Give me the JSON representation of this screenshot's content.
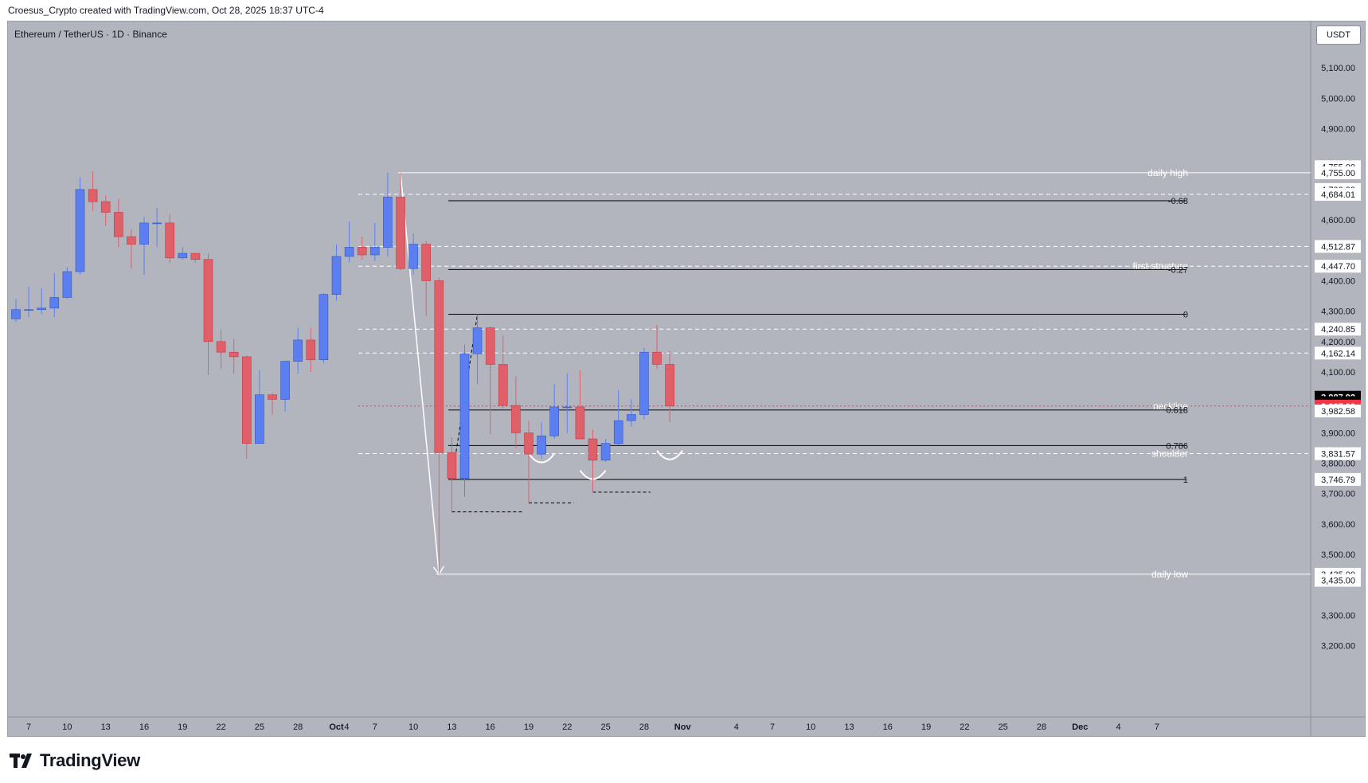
{
  "header": {
    "credit": "Croesus_Crypto created with TradingView.com, Oct 28, 2025 18:37 UTC-4"
  },
  "symbol_line": "Ethereum / TetherUS · 1D · Binance",
  "currency_button": "USDT",
  "brand": "TradingView",
  "colors": {
    "up": "#5b7ff0",
    "down": "#e0606a",
    "background": "#b2b5be",
    "white_line": "#ffffff",
    "black_line": "#000000",
    "last_price_badge": "#f23645",
    "countdown_badge": "#000000"
  },
  "chart_data": {
    "type": "candlestick",
    "title": "",
    "ylim": [
      3100,
      5200
    ],
    "y_scale": "linear",
    "grid": false,
    "y_ticks": [
      "5,100.00",
      "5,000.00",
      "4,900.00",
      "4,600.00",
      "4,400.00",
      "4,300.00",
      "4,200.00",
      "4,100.00",
      "3,900.00",
      "3,800.00",
      "3,700.00",
      "3,600.00",
      "3,500.00",
      "3,300.00",
      "3,200.00"
    ],
    "x_ticks": [
      "7",
      "10",
      "13",
      "16",
      "19",
      "22",
      "25",
      "28",
      "Oct",
      "4",
      "7",
      "10",
      "13",
      "16",
      "19",
      "22",
      "25",
      "28",
      "Nov",
      "4",
      "7",
      "10",
      "13",
      "16",
      "19",
      "22",
      "25",
      "28",
      "Dec",
      "4",
      "7"
    ],
    "candles": [
      {
        "date": "2025-09-06",
        "o": 4275,
        "h": 4340,
        "l": 4265,
        "c": 4305
      },
      {
        "date": "2025-09-07",
        "o": 4305,
        "h": 4380,
        "l": 4280,
        "c": 4305
      },
      {
        "date": "2025-09-08",
        "o": 4305,
        "h": 4375,
        "l": 4290,
        "c": 4310
      },
      {
        "date": "2025-09-09",
        "o": 4310,
        "h": 4425,
        "l": 4280,
        "c": 4345
      },
      {
        "date": "2025-09-10",
        "o": 4345,
        "h": 4445,
        "l": 4340,
        "c": 4430
      },
      {
        "date": "2025-09-11",
        "o": 4430,
        "h": 4740,
        "l": 4420,
        "c": 4700
      },
      {
        "date": "2025-09-12",
        "o": 4700,
        "h": 4760,
        "l": 4630,
        "c": 4660
      },
      {
        "date": "2025-09-13",
        "o": 4660,
        "h": 4680,
        "l": 4580,
        "c": 4625
      },
      {
        "date": "2025-09-14",
        "o": 4625,
        "h": 4670,
        "l": 4510,
        "c": 4545
      },
      {
        "date": "2025-09-15",
        "o": 4545,
        "h": 4570,
        "l": 4440,
        "c": 4520
      },
      {
        "date": "2025-09-16",
        "o": 4520,
        "h": 4610,
        "l": 4420,
        "c": 4590
      },
      {
        "date": "2025-09-17",
        "o": 4590,
        "h": 4640,
        "l": 4510,
        "c": 4590
      },
      {
        "date": "2025-09-18",
        "o": 4590,
        "h": 4620,
        "l": 4460,
        "c": 4475
      },
      {
        "date": "2025-09-19",
        "o": 4475,
        "h": 4510,
        "l": 4470,
        "c": 4490
      },
      {
        "date": "2025-09-20",
        "o": 4490,
        "h": 4490,
        "l": 4460,
        "c": 4470
      },
      {
        "date": "2025-09-21",
        "o": 4470,
        "h": 4490,
        "l": 4090,
        "c": 4200
      },
      {
        "date": "2025-09-22",
        "o": 4200,
        "h": 4240,
        "l": 4110,
        "c": 4165
      },
      {
        "date": "2025-09-23",
        "o": 4165,
        "h": 4210,
        "l": 4095,
        "c": 4150
      },
      {
        "date": "2025-09-24",
        "o": 4150,
        "h": 4155,
        "l": 3815,
        "c": 3865
      },
      {
        "date": "2025-09-25",
        "o": 3865,
        "h": 4105,
        "l": 3865,
        "c": 4025
      },
      {
        "date": "2025-09-26",
        "o": 4025,
        "h": 4030,
        "l": 3960,
        "c": 4010
      },
      {
        "date": "2025-09-27",
        "o": 4010,
        "h": 4120,
        "l": 3970,
        "c": 4135
      },
      {
        "date": "2025-09-28",
        "o": 4135,
        "h": 4245,
        "l": 4095,
        "c": 4205
      },
      {
        "date": "2025-09-29",
        "o": 4205,
        "h": 4245,
        "l": 4100,
        "c": 4140
      },
      {
        "date": "2025-09-30",
        "o": 4140,
        "h": 4360,
        "l": 4130,
        "c": 4355
      },
      {
        "date": "2025-10-01",
        "o": 4355,
        "h": 4520,
        "l": 4335,
        "c": 4480
      },
      {
        "date": "2025-10-02",
        "o": 4480,
        "h": 4595,
        "l": 4460,
        "c": 4510
      },
      {
        "date": "2025-10-03",
        "o": 4510,
        "h": 4545,
        "l": 4470,
        "c": 4485
      },
      {
        "date": "2025-10-04",
        "o": 4485,
        "h": 4590,
        "l": 4465,
        "c": 4510
      },
      {
        "date": "2025-10-05",
        "o": 4510,
        "h": 4755,
        "l": 4480,
        "c": 4675
      },
      {
        "date": "2025-10-06",
        "o": 4675,
        "h": 4755,
        "l": 4435,
        "c": 4440
      },
      {
        "date": "2025-10-07",
        "o": 4440,
        "h": 4555,
        "l": 4420,
        "c": 4520
      },
      {
        "date": "2025-10-08",
        "o": 4520,
        "h": 4530,
        "l": 4285,
        "c": 4400
      },
      {
        "date": "2025-10-09",
        "o": 4400,
        "h": 4410,
        "l": 3435,
        "c": 3835
      },
      {
        "date": "2025-10-10",
        "o": 3835,
        "h": 3885,
        "l": 3640,
        "c": 3750
      },
      {
        "date": "2025-10-11",
        "o": 3750,
        "h": 4190,
        "l": 3690,
        "c": 4160
      },
      {
        "date": "2025-10-12",
        "o": 4160,
        "h": 4290,
        "l": 4060,
        "c": 4245
      },
      {
        "date": "2025-10-13",
        "o": 4245,
        "h": 4250,
        "l": 3895,
        "c": 4125
      },
      {
        "date": "2025-10-14",
        "o": 4125,
        "h": 4220,
        "l": 3980,
        "c": 3990
      },
      {
        "date": "2025-10-15",
        "o": 3990,
        "h": 4085,
        "l": 3850,
        "c": 3900
      },
      {
        "date": "2025-10-16",
        "o": 3900,
        "h": 3940,
        "l": 3670,
        "c": 3830
      },
      {
        "date": "2025-10-17",
        "o": 3830,
        "h": 3935,
        "l": 3815,
        "c": 3890
      },
      {
        "date": "2025-10-18",
        "o": 3890,
        "h": 4060,
        "l": 3880,
        "c": 3985
      },
      {
        "date": "2025-10-19",
        "o": 3985,
        "h": 4095,
        "l": 3900,
        "c": 3985
      },
      {
        "date": "2025-10-20",
        "o": 3985,
        "h": 4105,
        "l": 3880,
        "c": 3880
      },
      {
        "date": "2025-10-21",
        "o": 3880,
        "h": 3910,
        "l": 3705,
        "c": 3810
      },
      {
        "date": "2025-10-22",
        "o": 3810,
        "h": 3880,
        "l": 3805,
        "c": 3865
      },
      {
        "date": "2025-10-23",
        "o": 3865,
        "h": 4040,
        "l": 3860,
        "c": 3940
      },
      {
        "date": "2025-10-24",
        "o": 3940,
        "h": 4010,
        "l": 3920,
        "c": 3960
      },
      {
        "date": "2025-10-25",
        "o": 3960,
        "h": 4180,
        "l": 3945,
        "c": 4165
      },
      {
        "date": "2025-10-26",
        "o": 4165,
        "h": 4255,
        "l": 4110,
        "c": 4125
      },
      {
        "date": "2025-10-27",
        "o": 4125,
        "h": 4170,
        "l": 3935,
        "c": 3988
      }
    ],
    "horizontal_lines": [
      {
        "price": 4755.0,
        "style": "solid",
        "color": "#ffffff",
        "label": "daily high"
      },
      {
        "price": 4684.01,
        "style": "dashed",
        "color": "#ffffff",
        "label": ""
      },
      {
        "price": 4512.87,
        "style": "dashed",
        "color": "#ffffff",
        "label": ""
      },
      {
        "price": 4447.7,
        "style": "dashed",
        "color": "#ffffff",
        "label": "first structure"
      },
      {
        "price": 4240.85,
        "style": "dashed",
        "color": "#ffffff",
        "label": ""
      },
      {
        "price": 4162.14,
        "style": "dashed",
        "color": "#ffffff",
        "label": ""
      },
      {
        "price": 3987.92,
        "style": "dotted",
        "color": "#f23645",
        "label": "neckline"
      },
      {
        "price": 3831.57,
        "style": "dashed",
        "color": "#ffffff",
        "label": "shoulder"
      },
      {
        "price": 3435.0,
        "style": "solid",
        "color": "#ffffff",
        "label": "daily low"
      }
    ],
    "fib_levels": [
      {
        "ratio": "-0.68",
        "price": 4663
      },
      {
        "ratio": "-0.27",
        "price": 4437
      },
      {
        "ratio": "0",
        "price": 4290
      },
      {
        "ratio": "0.618",
        "price": 3975
      },
      {
        "ratio": "0.786",
        "price": 3858
      },
      {
        "ratio": "1",
        "price": 3746.79
      }
    ],
    "price_labels": [
      {
        "text": "4,755.00",
        "price": 4775,
        "type": "white"
      },
      {
        "text": "4,755.00",
        "price": 4755,
        "type": "white"
      },
      {
        "text": "4,700.00",
        "price": 4700,
        "type": "white"
      },
      {
        "text": "4,684.01",
        "price": 4684.01,
        "type": "white"
      },
      {
        "text": "4,512.87",
        "price": 4512.87,
        "type": "white"
      },
      {
        "text": "4,447.70",
        "price": 4447.7,
        "type": "white"
      },
      {
        "text": "4,240.85",
        "price": 4240.85,
        "type": "white"
      },
      {
        "text": "4,162.14",
        "price": 4162.14,
        "type": "white"
      },
      {
        "text": "3,987.92",
        "price": 4017,
        "type": "black"
      },
      {
        "text": "01:22:35",
        "price": 3999,
        "type": "black"
      },
      {
        "text": "3,987.92",
        "price": 3987.92,
        "type": "red"
      },
      {
        "text": "3,982.58",
        "price": 3972,
        "type": "white"
      },
      {
        "text": "3,831.57",
        "price": 3831.57,
        "type": "white"
      },
      {
        "text": "3,746.79",
        "price": 3746.79,
        "type": "white"
      },
      {
        "text": "3,435.00",
        "price": 3435,
        "type": "white"
      },
      {
        "text": "3,435.00",
        "price": 3415,
        "type": "white"
      }
    ],
    "annotations": {
      "low_markers": [
        {
          "date_from": "2025-10-10",
          "date_to": "2025-10-15",
          "price": 3640
        },
        {
          "date_from": "2025-10-16",
          "date_to": "2025-10-19",
          "price": 3670
        },
        {
          "date_from": "2025-10-21",
          "date_to": "2025-10-25",
          "price": 3705
        }
      ],
      "arcs": [
        {
          "date": "2025-10-17",
          "price": 3800
        },
        {
          "date": "2025-10-21",
          "price": 3745
        },
        {
          "date": "2025-10-27",
          "price": 3810
        }
      ],
      "drop_arrow": {
        "from_date": "2025-10-06",
        "from_price": 4755,
        "to_date": "2025-10-09",
        "to_price": 3435
      },
      "rise_line": {
        "from_date": "2025-10-10",
        "from_price": 3746.79,
        "to_date": "2025-10-12",
        "to_price": 4290
      }
    }
  }
}
